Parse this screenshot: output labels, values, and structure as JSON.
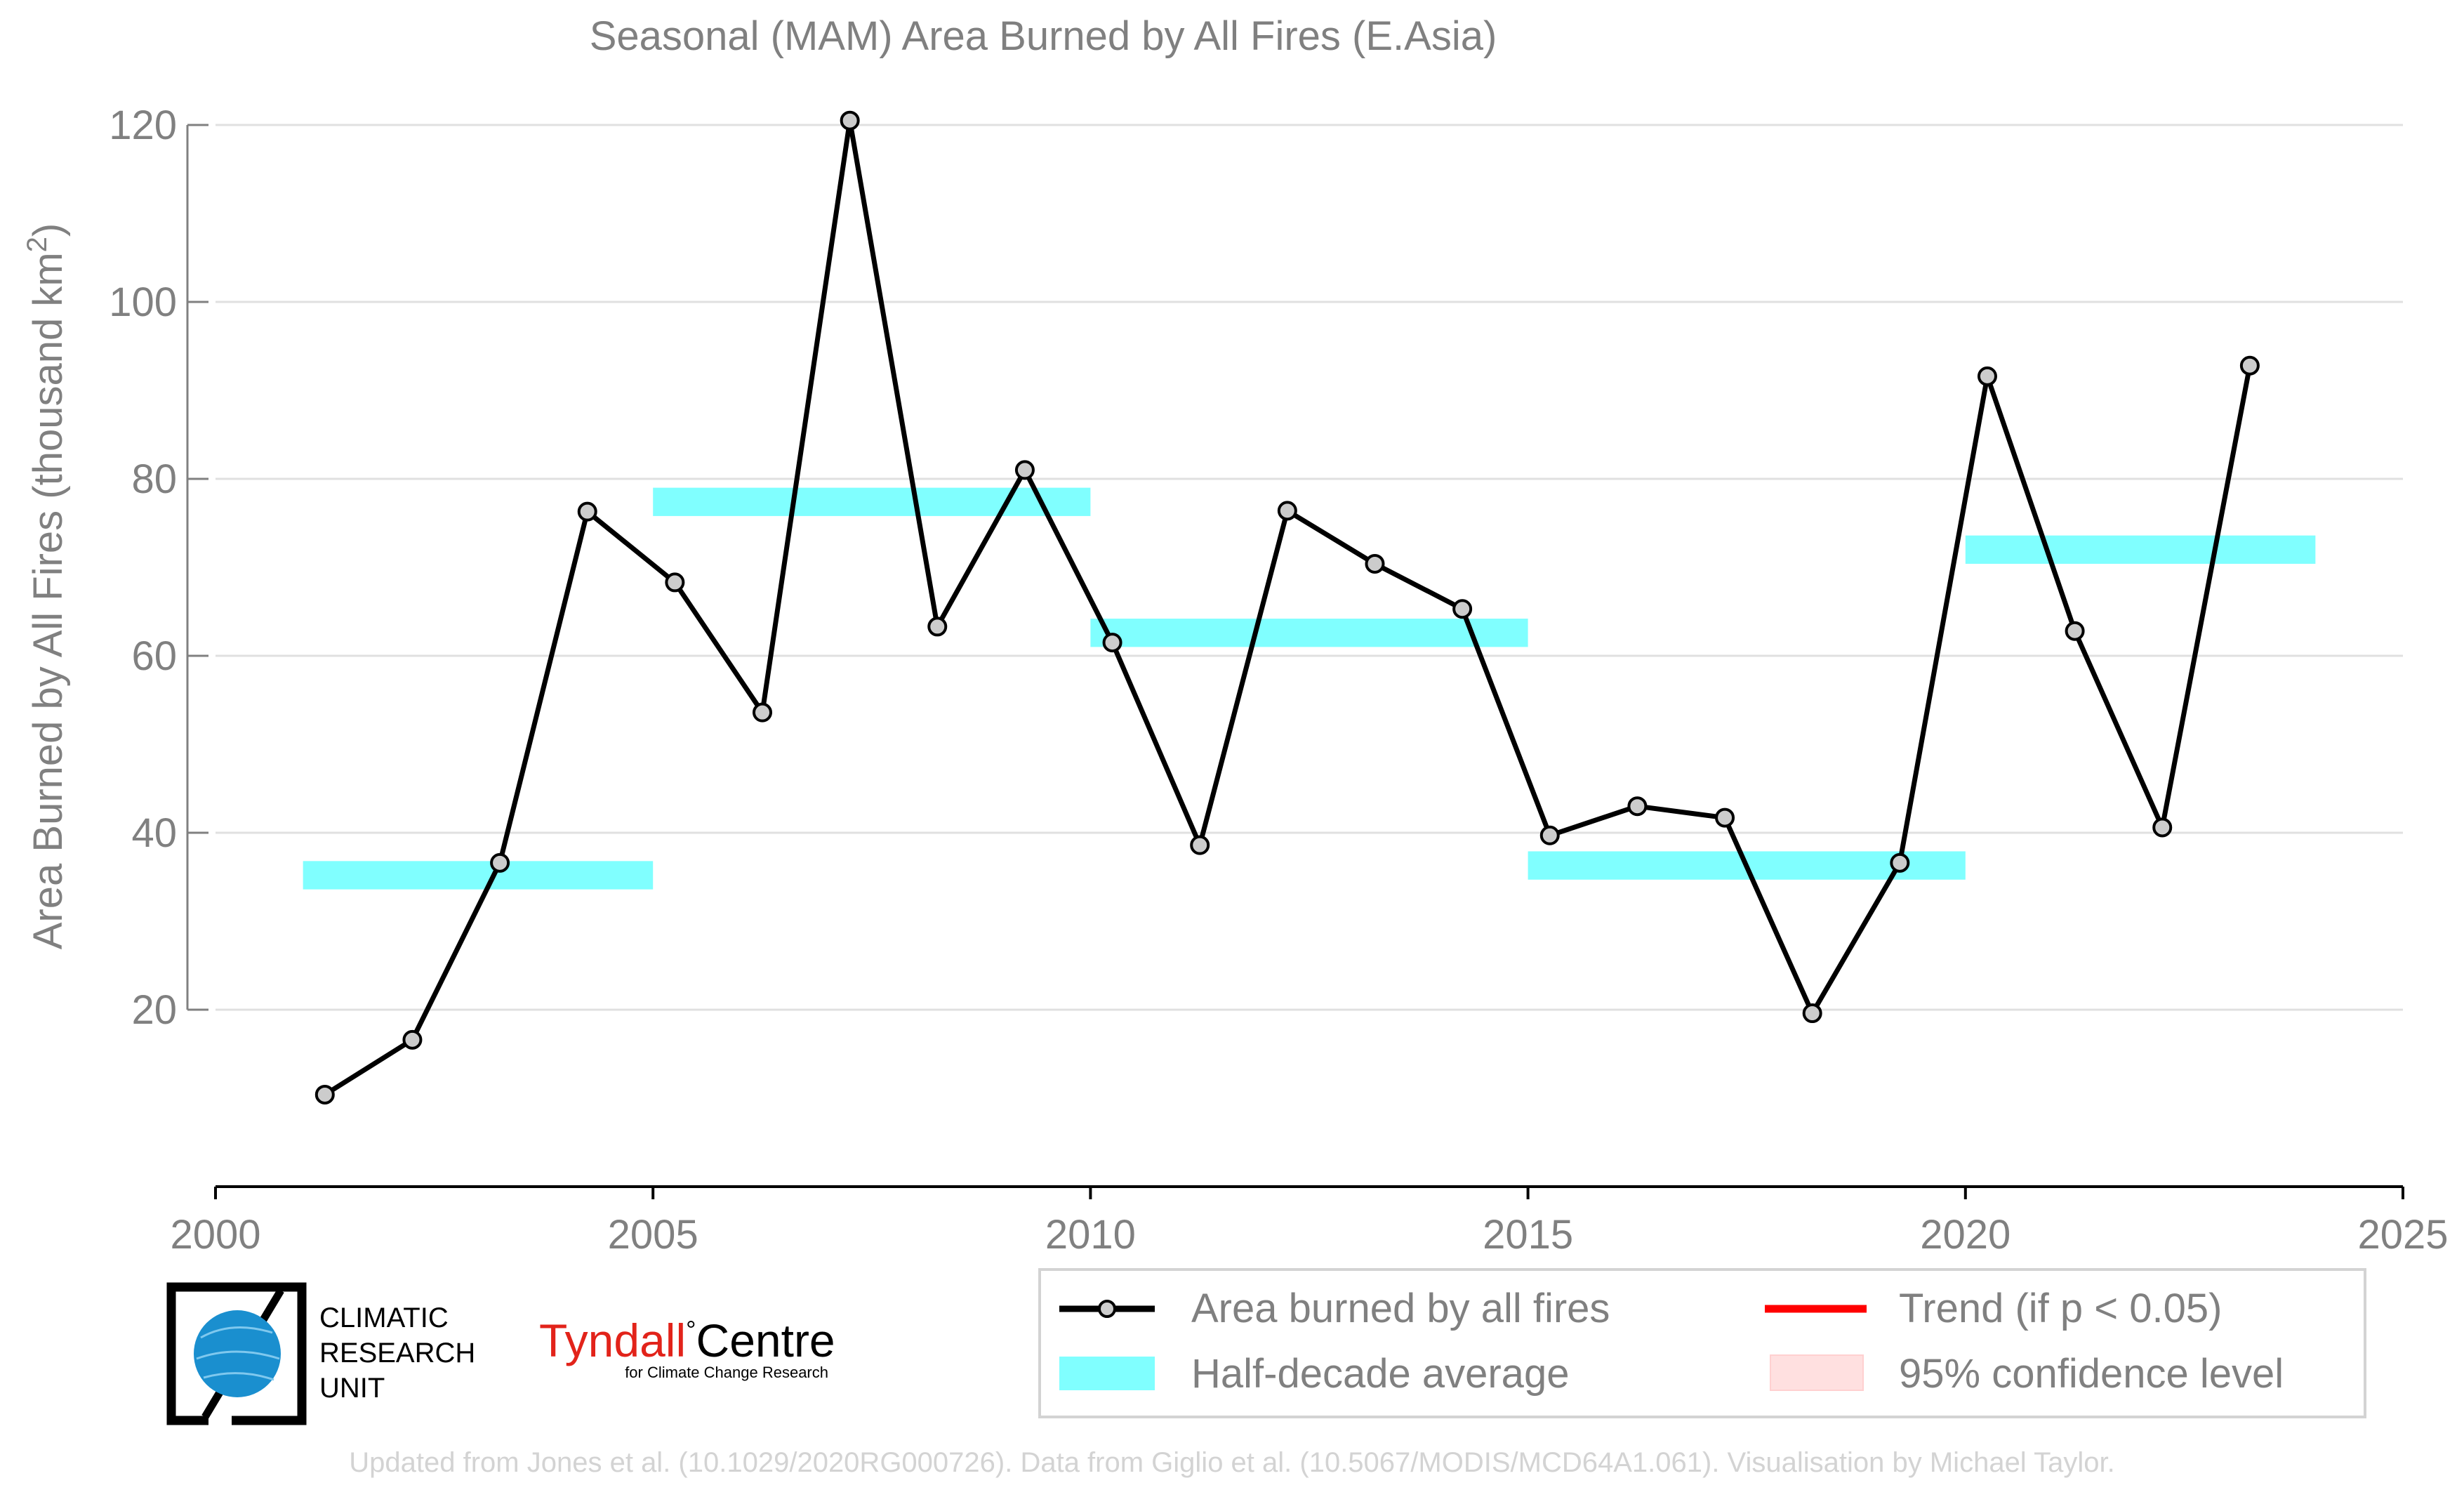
{
  "chart_data": {
    "type": "line",
    "title": "Seasonal (MAM) Area Burned by All Fires (E.Asia)",
    "ylabel_main": "Area Burned by All Fires (thousand km",
    "ylabel_sup": "2",
    "ylabel_close": ")",
    "xlim": [
      2000,
      2025
    ],
    "ylim": [
      0,
      120
    ],
    "xticks": [
      2000,
      2005,
      2010,
      2015,
      2020,
      2025
    ],
    "yticks": [
      20,
      40,
      60,
      80,
      100,
      120
    ],
    "grid": "horizontal",
    "legend_position": "bottom-right",
    "series": [
      {
        "name": "Area burned by all fires",
        "x": [
          2001.25,
          2002.25,
          2003.25,
          2004.25,
          2005.25,
          2006.25,
          2007.25,
          2008.25,
          2009.25,
          2010.25,
          2011.25,
          2012.25,
          2013.25,
          2014.25,
          2015.25,
          2016.25,
          2017.25,
          2018.25,
          2019.25,
          2020.25,
          2021.25,
          2022.25,
          2023.25
        ],
        "values": [
          10.4,
          16.6,
          36.6,
          76.3,
          68.3,
          53.6,
          120.5,
          63.3,
          81.0,
          61.5,
          38.6,
          76.4,
          70.4,
          65.3,
          39.7,
          43.0,
          41.7,
          19.6,
          36.6,
          91.6,
          62.8,
          40.6,
          92.8
        ],
        "color": "#000000",
        "marker_fill": "#cccccc"
      }
    ],
    "half_decade_averages": {
      "name": "Half-decade average",
      "color": "#80ffff",
      "segments": [
        {
          "start": 2001,
          "end": 2005,
          "value": 35.2
        },
        {
          "start": 2005,
          "end": 2010,
          "value": 77.4
        },
        {
          "start": 2010,
          "end": 2015,
          "value": 62.6
        },
        {
          "start": 2015,
          "end": 2020,
          "value": 36.3
        },
        {
          "start": 2020,
          "end": 2024,
          "value": 72.0
        }
      ]
    },
    "legend": {
      "series_label": "Area burned by all fires",
      "average_label": "Half-decade average",
      "trend_label": "Trend (if p < 0.05)",
      "confidence_label": "95% confidence level",
      "trend_color": "#ff0000",
      "confidence_color": "#ffe0e0"
    }
  },
  "logos": {
    "cru_line1": "CLIMATIC",
    "cru_line2": "RESEARCH",
    "cru_line3": "UNIT",
    "tyndall_main": "Tyndall",
    "tyndall_degree": "°",
    "tyndall_centre": "Centre",
    "tyndall_sub": "for Climate Change Research"
  },
  "footer": "Updated from Jones et al. (10.1029/2020RG000726). Data from Giglio et al. (10.5067/MODIS/MCD64A1.061). Visualisation by Michael Taylor.",
  "colors": {
    "text": "#808080",
    "grid": "#e0e0e0",
    "axis": "#000000",
    "cru_blue": "#1a8fcf",
    "tyndall_red": "#e2231a",
    "footer": "#d3d3d3"
  }
}
